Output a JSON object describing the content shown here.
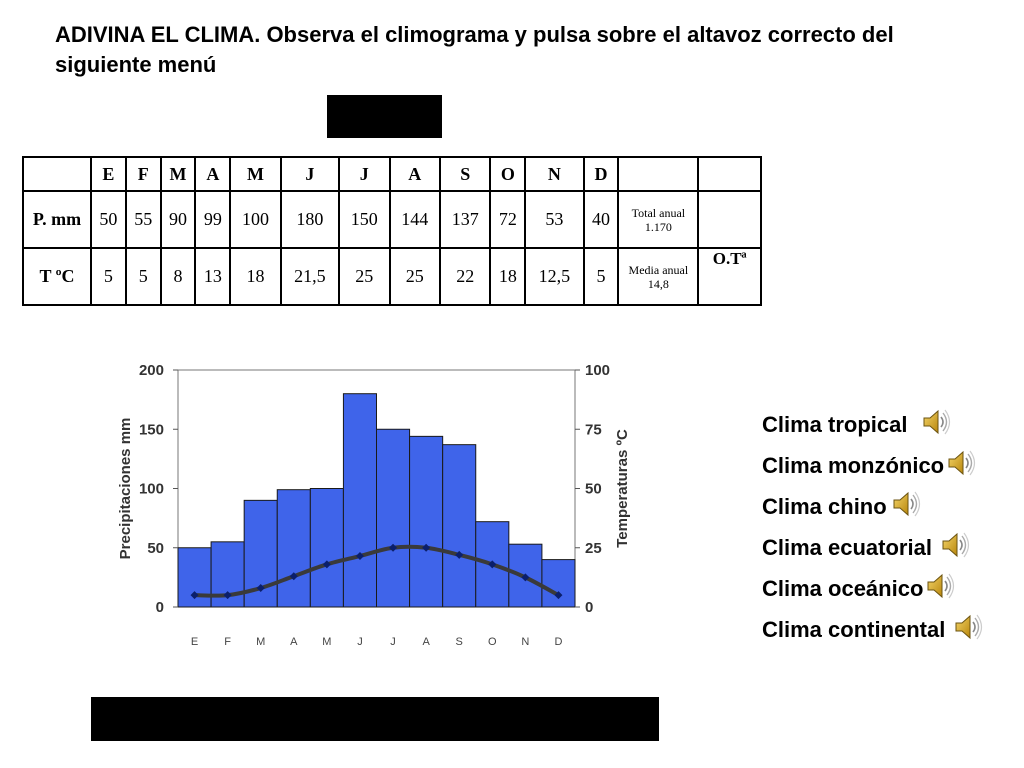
{
  "title": "ADIVINA EL CLIMA. Observa el climograma y pulsa sobre el altavoz correcto del siguiente menú",
  "table": {
    "months": [
      "E",
      "F",
      "M",
      "A",
      "M",
      "J",
      "J",
      "A",
      "S",
      "O",
      "N",
      "D"
    ],
    "rows": [
      {
        "label": "P. mm",
        "values": [
          "50",
          "55",
          "90",
          "99",
          "100",
          "180",
          "150",
          "144",
          "137",
          "72",
          "53",
          "40"
        ],
        "summary_line1": "Total anual",
        "summary_line2": "1.170",
        "extra": ""
      },
      {
        "label": "T ºC",
        "values": [
          "5",
          "5",
          "8",
          "13",
          "18",
          "21,5",
          "25",
          "25",
          "22",
          "18",
          "12,5",
          "5"
        ],
        "summary_line1": "Media anual",
        "summary_line2": "14,8",
        "extra": "O.Tª"
      }
    ]
  },
  "chart_data": {
    "type": "bar",
    "categories": [
      "E",
      "F",
      "M",
      "A",
      "M",
      "J",
      "J",
      "A",
      "S",
      "O",
      "N",
      "D"
    ],
    "series": [
      {
        "values": [
          50,
          55,
          90,
          99,
          100,
          180,
          150,
          144,
          137,
          72,
          53,
          40
        ],
        "axis": "left",
        "color": "#3f64ea"
      },
      {
        "values": [
          5,
          5,
          8,
          13,
          18,
          21.5,
          25,
          25,
          22,
          18,
          12.5,
          5
        ],
        "axis": "right",
        "type": "line",
        "color": "#3a3a3a"
      }
    ],
    "ylabel": "Precipitaciones mm",
    "y2label": "Temperaturas ºC",
    "ylim": [
      0,
      200
    ],
    "y2lim": [
      0,
      100
    ],
    "yticks": [
      "0",
      "50",
      "100",
      "150",
      "200"
    ],
    "y2ticks": [
      "0",
      "25",
      "50",
      "75",
      "100"
    ],
    "grid": false
  },
  "menu": {
    "items": [
      {
        "label": "Clima tropical",
        "icon": "speaker-icon"
      },
      {
        "label": "Clima monzónico",
        "icon": "speaker-icon"
      },
      {
        "label": "Clima chino",
        "icon": "speaker-icon"
      },
      {
        "label": "Clima ecuatorial",
        "icon": "speaker-icon"
      },
      {
        "label": "Clima oceánico",
        "icon": "speaker-icon"
      },
      {
        "label": "Clima continental",
        "icon": "speaker-icon"
      }
    ]
  }
}
